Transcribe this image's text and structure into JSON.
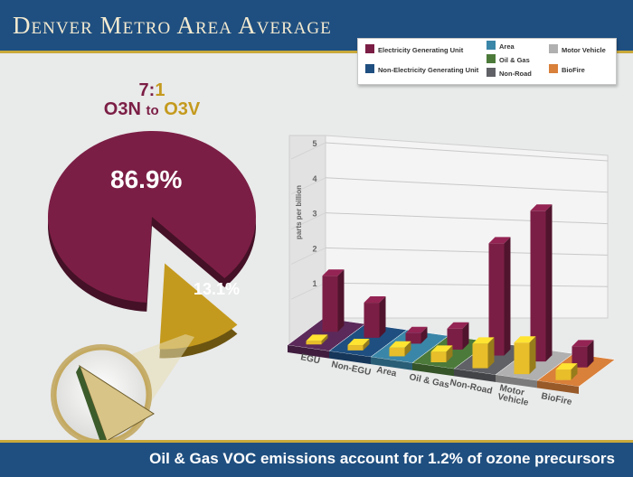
{
  "header": {
    "title": "Denver Metro Area Average"
  },
  "footer": {
    "text": "Oil & Gas VOC emissions account for 1.2% of ozone precursors"
  },
  "ratio": {
    "value_left": "7",
    "sep": ":",
    "value_right": "1",
    "label_left": "O3N",
    "to": "to",
    "label_right": "O3V"
  },
  "pie": {
    "major_label": "86.9%",
    "minor_label": "13.1%"
  },
  "legend": [
    {
      "label": "Electricity Generating Unit",
      "color": "#7b1e45"
    },
    {
      "label": "Non-Electricity Generating Unit",
      "color": "#1f4f80"
    },
    {
      "label": "Area",
      "color": "#3a86a8"
    },
    {
      "label": "Oil & Gas",
      "color": "#4c7a3a"
    },
    {
      "label": "Non-Road",
      "color": "#5f6166"
    },
    {
      "label": "Motor Vehicle",
      "color": "#b0b0b0"
    },
    {
      "label": "BioFire",
      "color": "#d9803a"
    }
  ],
  "chart_data": [
    {
      "type": "pie",
      "categories": [
        "O3N",
        "O3V"
      ],
      "values": [
        86.9,
        13.1
      ],
      "colors": [
        "#7b1e45",
        "#c49a1e"
      ]
    },
    {
      "type": "bar",
      "categories": [
        "EGU",
        "Non-EGU",
        "Area",
        "Oil & Gas",
        "Non-Road",
        "Motor Vehicle",
        "BioFire"
      ],
      "series": [
        {
          "values": [
            1.6,
            1.0,
            0.3,
            0.6,
            3.2,
            4.3,
            0.6
          ],
          "color": "#7b1e45"
        },
        {
          "values": [
            0.1,
            0.15,
            0.25,
            0.3,
            0.7,
            0.9,
            0.3
          ],
          "color": "#e8be2a"
        }
      ],
      "ylabel": "parts per billion",
      "ylim": [
        0,
        5
      ],
      "yticks": [
        "1",
        "2",
        "3",
        "4",
        "5"
      ],
      "floor_colors": [
        "#5b2a5a",
        "#1f4f80",
        "#3a86a8",
        "#4c7a3a",
        "#5f6166",
        "#b0b0b0",
        "#d9803a"
      ]
    }
  ]
}
